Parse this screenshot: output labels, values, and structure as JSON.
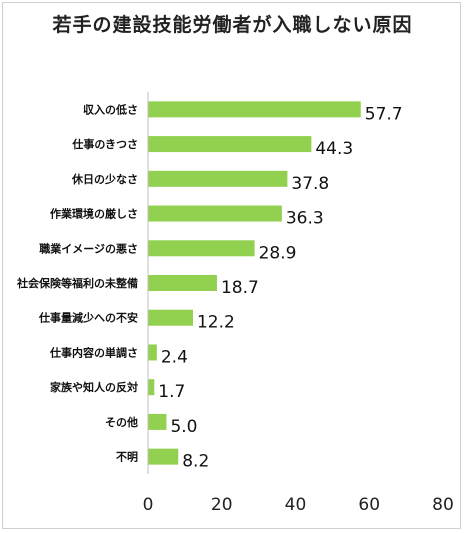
{
  "chart_data": {
    "type": "bar",
    "orientation": "horizontal",
    "title": "若手の建設技能労働者が入職しない原因",
    "categories": [
      "収入の低さ",
      "仕事のきつさ",
      "休日の少なさ",
      "作業環境の厳しさ",
      "職業イメージの悪さ",
      "社会保険等福利の未整備",
      "仕事量減少への不安",
      "仕事内容の単調さ",
      "家族や知人の反対",
      "その他",
      "不明"
    ],
    "values": [
      57.7,
      44.3,
      37.8,
      36.3,
      28.9,
      18.7,
      12.2,
      2.4,
      1.7,
      5.0,
      8.2
    ],
    "value_labels": [
      "57.7",
      "44.3",
      "37.8",
      "36.3",
      "28.9",
      "18.7",
      "12.2",
      "2.4",
      "1.7",
      "5.0",
      "8.2"
    ],
    "xlim": [
      0,
      80
    ],
    "xticks": [
      "0",
      "20",
      "40",
      "60",
      "80"
    ],
    "grid": false,
    "legend": "none",
    "bar_color": "#92d050"
  }
}
